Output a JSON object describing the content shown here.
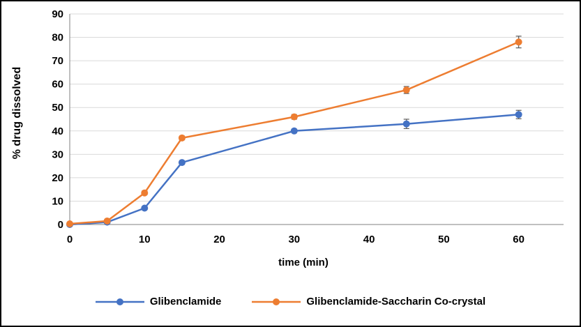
{
  "chart_data": {
    "type": "line",
    "x": [
      0,
      5,
      10,
      15,
      30,
      45,
      60
    ],
    "series": [
      {
        "name": "Glibenclamide",
        "color": "#4472C4",
        "values": [
          0,
          1,
          7,
          26.5,
          40,
          43,
          47
        ],
        "errors": [
          0,
          0,
          0,
          0,
          0.8,
          2,
          1.8
        ]
      },
      {
        "name": "Glibenclamide-Saccharin Co-crystal",
        "color": "#ED7D31",
        "values": [
          0.3,
          1.5,
          13.5,
          37,
          46,
          57.5,
          78
        ],
        "errors": [
          0,
          0,
          0.8,
          0.8,
          1,
          1.5,
          2.5
        ]
      }
    ],
    "title": "",
    "xlabel": "time (min)",
    "ylabel": "% drug dissolved",
    "xlim": [
      0,
      66
    ],
    "ylim": [
      0,
      90
    ],
    "x_ticks": [
      0,
      10,
      20,
      30,
      40,
      50,
      60
    ],
    "y_ticks": [
      0,
      10,
      20,
      30,
      40,
      50,
      60,
      70,
      80,
      90
    ],
    "grid": "horizontal",
    "legend_position": "bottom"
  },
  "style": {
    "gridline_color": "#D9D9D9",
    "axis_color": "#808080",
    "error_bar_color": "#595959",
    "text_color": "#000000",
    "frame_border_color": "#000000"
  }
}
